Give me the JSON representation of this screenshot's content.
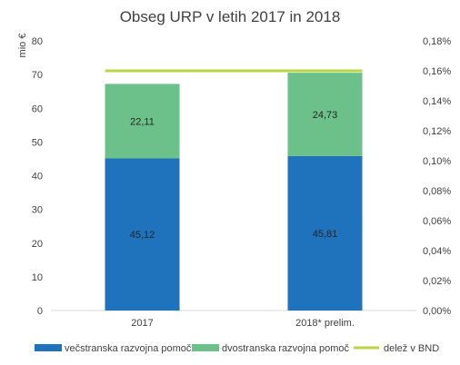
{
  "chart_data": {
    "type": "bar",
    "stacked": true,
    "title": "Obseg URP v letih 2017 in 2018",
    "ylabel": "mio €",
    "ylabel_right": "",
    "categories": [
      "2017",
      "2018* prelim."
    ],
    "ylim": [
      0,
      80
    ],
    "yticks": [
      "0",
      "10",
      "20",
      "30",
      "40",
      "50",
      "60",
      "70",
      "80"
    ],
    "y2lim": [
      0,
      0.18
    ],
    "y2ticks": [
      "0,00%",
      "0,02%",
      "0,04%",
      "0,06%",
      "0,08%",
      "0,10%",
      "0,12%",
      "0,14%",
      "0,16%",
      "0,18%"
    ],
    "series": [
      {
        "name": "večstranska razvojna pomoč",
        "values": [
          45.12,
          45.81
        ],
        "labels": [
          "45,12",
          "45,81"
        ],
        "color": "#1F72BC",
        "kind": "bar"
      },
      {
        "name": "dvostranska razvojna pomoč",
        "values": [
          22.11,
          24.73
        ],
        "labels": [
          "22,11",
          "24,73"
        ],
        "color": "#6CC08A",
        "kind": "bar"
      },
      {
        "name": "delež v BND",
        "values": [
          0.16,
          0.16
        ],
        "color": "#B9D445",
        "kind": "line",
        "axis": "right"
      }
    ],
    "grid": false,
    "legend_position": "bottom"
  }
}
